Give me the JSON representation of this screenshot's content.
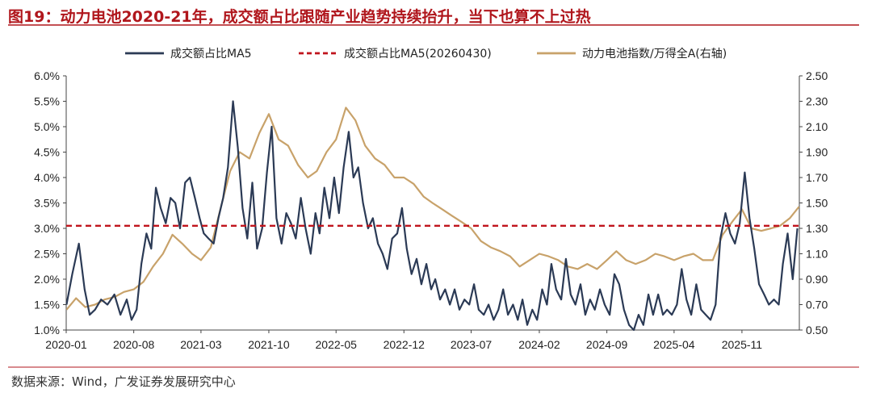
{
  "figure": {
    "title": "图19：动力电池2020-21年，成交额占比跟随产业趋势持续抬升，当下也算不上过热",
    "source": "数据来源：Wind，广发证券发展研究中心"
  },
  "colors": {
    "accent_red": "#b0161c",
    "series_dark": "#2b3a55",
    "series_gold": "#c8a26a",
    "ref_line": "#c0141c"
  },
  "chart_data": {
    "type": "line",
    "x_range": [
      "2020-01",
      "2026-05"
    ],
    "x_ticks": [
      "2020-01",
      "2020-08",
      "2021-03",
      "2021-10",
      "2022-05",
      "2022-12",
      "2023-07",
      "2024-02",
      "2024-09",
      "2025-04",
      "2025-11"
    ],
    "y_left": {
      "ticks": [
        "1.0%",
        "1.5%",
        "2.0%",
        "2.5%",
        "3.0%",
        "3.5%",
        "4.0%",
        "4.5%",
        "5.0%",
        "5.5%",
        "6.0%"
      ],
      "range": [
        1.0,
        6.0
      ],
      "unit": "%"
    },
    "y_right": {
      "ticks": [
        "0.50",
        "0.70",
        "0.90",
        "1.10",
        "1.30",
        "1.50",
        "1.70",
        "1.90",
        "2.10",
        "2.30",
        "2.50"
      ],
      "range": [
        0.5,
        2.5
      ]
    },
    "grid": false,
    "legend_position": "top",
    "series": [
      {
        "name": "成交额占比MA5",
        "axis": "left",
        "style": "solid",
        "color": "#2b3a55",
        "points": [
          [
            "2020-01-02",
            1.5
          ],
          [
            "2020-01-20",
            2.1
          ],
          [
            "2020-02-10",
            2.7
          ],
          [
            "2020-02-28",
            1.8
          ],
          [
            "2020-03-15",
            1.3
          ],
          [
            "2020-04-01",
            1.4
          ],
          [
            "2020-04-20",
            1.6
          ],
          [
            "2020-05-10",
            1.5
          ],
          [
            "2020-06-01",
            1.7
          ],
          [
            "2020-06-20",
            1.3
          ],
          [
            "2020-07-10",
            1.6
          ],
          [
            "2020-07-25",
            1.2
          ],
          [
            "2020-08-10",
            1.4
          ],
          [
            "2020-08-25",
            2.3
          ],
          [
            "2020-09-10",
            2.9
          ],
          [
            "2020-09-25",
            2.6
          ],
          [
            "2020-10-10",
            3.8
          ],
          [
            "2020-10-25",
            3.4
          ],
          [
            "2020-11-10",
            3.1
          ],
          [
            "2020-11-25",
            3.6
          ],
          [
            "2020-12-10",
            3.5
          ],
          [
            "2020-12-25",
            3.0
          ],
          [
            "2021-01-10",
            3.9
          ],
          [
            "2021-01-25",
            4.0
          ],
          [
            "2021-02-10",
            3.6
          ],
          [
            "2021-02-25",
            3.2
          ],
          [
            "2021-03-10",
            2.9
          ],
          [
            "2021-03-25",
            2.8
          ],
          [
            "2021-04-10",
            2.7
          ],
          [
            "2021-04-25",
            3.2
          ],
          [
            "2021-05-10",
            3.6
          ],
          [
            "2021-05-25",
            4.2
          ],
          [
            "2021-06-10",
            5.5
          ],
          [
            "2021-06-25",
            4.6
          ],
          [
            "2021-07-10",
            3.4
          ],
          [
            "2021-07-25",
            2.8
          ],
          [
            "2021-08-10",
            3.9
          ],
          [
            "2021-08-25",
            2.6
          ],
          [
            "2021-09-10",
            3.0
          ],
          [
            "2021-09-25",
            4.1
          ],
          [
            "2021-10-10",
            5.0
          ],
          [
            "2021-10-25",
            3.2
          ],
          [
            "2021-11-10",
            2.7
          ],
          [
            "2021-11-25",
            3.3
          ],
          [
            "2021-12-10",
            3.1
          ],
          [
            "2021-12-25",
            2.8
          ],
          [
            "2022-01-10",
            3.6
          ],
          [
            "2022-01-25",
            3.0
          ],
          [
            "2022-02-10",
            2.5
          ],
          [
            "2022-02-25",
            3.3
          ],
          [
            "2022-03-10",
            2.9
          ],
          [
            "2022-03-25",
            3.8
          ],
          [
            "2022-04-10",
            3.2
          ],
          [
            "2022-04-25",
            4.0
          ],
          [
            "2022-05-10",
            3.3
          ],
          [
            "2022-05-25",
            4.2
          ],
          [
            "2022-06-10",
            4.9
          ],
          [
            "2022-06-25",
            4.0
          ],
          [
            "2022-07-10",
            4.2
          ],
          [
            "2022-07-25",
            3.5
          ],
          [
            "2022-08-10",
            3.0
          ],
          [
            "2022-08-25",
            3.2
          ],
          [
            "2022-09-10",
            2.7
          ],
          [
            "2022-09-25",
            2.5
          ],
          [
            "2022-10-10",
            2.2
          ],
          [
            "2022-10-25",
            2.8
          ],
          [
            "2022-11-10",
            2.9
          ],
          [
            "2022-11-25",
            3.4
          ],
          [
            "2022-12-10",
            2.6
          ],
          [
            "2022-12-25",
            2.1
          ],
          [
            "2023-01-10",
            2.4
          ],
          [
            "2023-01-25",
            1.9
          ],
          [
            "2023-02-10",
            2.3
          ],
          [
            "2023-02-25",
            1.8
          ],
          [
            "2023-03-10",
            2.0
          ],
          [
            "2023-03-25",
            1.6
          ],
          [
            "2023-04-10",
            1.8
          ],
          [
            "2023-04-25",
            1.5
          ],
          [
            "2023-05-10",
            1.8
          ],
          [
            "2023-05-25",
            1.4
          ],
          [
            "2023-06-10",
            1.6
          ],
          [
            "2023-06-25",
            1.5
          ],
          [
            "2023-07-10",
            1.9
          ],
          [
            "2023-07-25",
            1.4
          ],
          [
            "2023-08-10",
            1.3
          ],
          [
            "2023-08-25",
            1.5
          ],
          [
            "2023-09-10",
            1.2
          ],
          [
            "2023-09-25",
            1.4
          ],
          [
            "2023-10-10",
            1.8
          ],
          [
            "2023-10-25",
            1.3
          ],
          [
            "2023-11-10",
            1.5
          ],
          [
            "2023-11-25",
            1.2
          ],
          [
            "2023-12-10",
            1.6
          ],
          [
            "2023-12-25",
            1.1
          ],
          [
            "2024-01-10",
            1.4
          ],
          [
            "2024-01-25",
            1.2
          ],
          [
            "2024-02-10",
            1.8
          ],
          [
            "2024-02-25",
            1.5
          ],
          [
            "2024-03-10",
            2.3
          ],
          [
            "2024-03-25",
            1.8
          ],
          [
            "2024-04-10",
            1.6
          ],
          [
            "2024-04-25",
            2.4
          ],
          [
            "2024-05-10",
            1.7
          ],
          [
            "2024-05-25",
            1.5
          ],
          [
            "2024-06-10",
            1.9
          ],
          [
            "2024-06-25",
            1.3
          ],
          [
            "2024-07-10",
            1.6
          ],
          [
            "2024-07-25",
            1.4
          ],
          [
            "2024-08-10",
            1.8
          ],
          [
            "2024-08-25",
            1.5
          ],
          [
            "2024-09-10",
            1.3
          ],
          [
            "2024-09-25",
            2.1
          ],
          [
            "2024-10-10",
            1.9
          ],
          [
            "2024-10-25",
            1.4
          ],
          [
            "2024-11-10",
            1.1
          ],
          [
            "2024-11-25",
            1.0
          ],
          [
            "2024-12-10",
            1.3
          ],
          [
            "2024-12-25",
            1.1
          ],
          [
            "2025-01-10",
            1.7
          ],
          [
            "2025-01-25",
            1.3
          ],
          [
            "2025-02-10",
            1.7
          ],
          [
            "2025-02-25",
            1.3
          ],
          [
            "2025-03-10",
            1.4
          ],
          [
            "2025-03-25",
            1.3
          ],
          [
            "2025-04-10",
            1.5
          ],
          [
            "2025-04-25",
            2.2
          ],
          [
            "2025-05-10",
            1.6
          ],
          [
            "2025-05-25",
            1.3
          ],
          [
            "2025-06-10",
            1.9
          ],
          [
            "2025-06-25",
            1.4
          ],
          [
            "2025-07-10",
            1.3
          ],
          [
            "2025-07-25",
            1.2
          ],
          [
            "2025-08-10",
            1.5
          ],
          [
            "2025-08-25",
            2.8
          ],
          [
            "2025-09-10",
            3.3
          ],
          [
            "2025-09-25",
            2.9
          ],
          [
            "2025-10-10",
            2.7
          ],
          [
            "2025-10-25",
            3.1
          ],
          [
            "2025-11-10",
            4.1
          ],
          [
            "2025-11-25",
            3.2
          ],
          [
            "2025-12-10",
            2.6
          ],
          [
            "2025-12-25",
            1.9
          ],
          [
            "2026-01-10",
            1.7
          ],
          [
            "2026-01-25",
            1.5
          ],
          [
            "2026-02-10",
            1.6
          ],
          [
            "2026-02-25",
            1.5
          ],
          [
            "2026-03-10",
            2.3
          ],
          [
            "2026-03-25",
            2.9
          ],
          [
            "2026-04-10",
            2.0
          ],
          [
            "2026-04-25",
            3.0
          ]
        ]
      },
      {
        "name": "成交额占比MA5(20260430)",
        "axis": "left",
        "style": "dashed",
        "color": "#c0141c",
        "value": 3.05
      },
      {
        "name": "动力电池指数/万得全A(右轴)",
        "axis": "right",
        "style": "solid",
        "color": "#c8a26a",
        "points": [
          [
            "2020-01-02",
            0.66
          ],
          [
            "2020-02-01",
            0.75
          ],
          [
            "2020-03-01",
            0.68
          ],
          [
            "2020-04-01",
            0.7
          ],
          [
            "2020-05-01",
            0.74
          ],
          [
            "2020-06-01",
            0.76
          ],
          [
            "2020-07-01",
            0.8
          ],
          [
            "2020-08-01",
            0.82
          ],
          [
            "2020-09-01",
            0.88
          ],
          [
            "2020-10-01",
            1.0
          ],
          [
            "2020-11-01",
            1.1
          ],
          [
            "2020-12-01",
            1.25
          ],
          [
            "2021-01-01",
            1.18
          ],
          [
            "2021-02-01",
            1.1
          ],
          [
            "2021-03-01",
            1.05
          ],
          [
            "2021-04-01",
            1.15
          ],
          [
            "2021-05-01",
            1.45
          ],
          [
            "2021-06-01",
            1.75
          ],
          [
            "2021-07-01",
            1.9
          ],
          [
            "2021-08-01",
            1.85
          ],
          [
            "2021-09-01",
            2.05
          ],
          [
            "2021-10-01",
            2.2
          ],
          [
            "2021-11-01",
            2.0
          ],
          [
            "2021-12-01",
            1.95
          ],
          [
            "2022-01-01",
            1.8
          ],
          [
            "2022-02-01",
            1.7
          ],
          [
            "2022-03-01",
            1.75
          ],
          [
            "2022-04-01",
            1.9
          ],
          [
            "2022-05-01",
            2.0
          ],
          [
            "2022-06-01",
            2.25
          ],
          [
            "2022-07-01",
            2.15
          ],
          [
            "2022-08-01",
            1.95
          ],
          [
            "2022-09-01",
            1.85
          ],
          [
            "2022-10-01",
            1.8
          ],
          [
            "2022-11-01",
            1.7
          ],
          [
            "2022-12-01",
            1.7
          ],
          [
            "2023-01-01",
            1.65
          ],
          [
            "2023-02-01",
            1.55
          ],
          [
            "2023-03-01",
            1.5
          ],
          [
            "2023-04-01",
            1.45
          ],
          [
            "2023-05-01",
            1.4
          ],
          [
            "2023-06-01",
            1.35
          ],
          [
            "2023-07-01",
            1.3
          ],
          [
            "2023-08-01",
            1.2
          ],
          [
            "2023-09-01",
            1.15
          ],
          [
            "2023-10-01",
            1.12
          ],
          [
            "2023-11-01",
            1.08
          ],
          [
            "2023-12-01",
            1.0
          ],
          [
            "2024-01-01",
            1.05
          ],
          [
            "2024-02-01",
            1.1
          ],
          [
            "2024-03-01",
            1.08
          ],
          [
            "2024-04-01",
            1.05
          ],
          [
            "2024-05-01",
            1.0
          ],
          [
            "2024-06-01",
            0.98
          ],
          [
            "2024-07-01",
            1.02
          ],
          [
            "2024-08-01",
            0.98
          ],
          [
            "2024-09-01",
            1.05
          ],
          [
            "2024-10-01",
            1.12
          ],
          [
            "2024-11-01",
            1.05
          ],
          [
            "2024-12-01",
            1.02
          ],
          [
            "2025-01-01",
            1.05
          ],
          [
            "2025-02-01",
            1.1
          ],
          [
            "2025-03-01",
            1.08
          ],
          [
            "2025-04-01",
            1.05
          ],
          [
            "2025-05-01",
            1.08
          ],
          [
            "2025-06-01",
            1.1
          ],
          [
            "2025-07-01",
            1.05
          ],
          [
            "2025-08-01",
            1.05
          ],
          [
            "2025-09-01",
            1.25
          ],
          [
            "2025-10-01",
            1.35
          ],
          [
            "2025-11-01",
            1.45
          ],
          [
            "2025-12-01",
            1.3
          ],
          [
            "2026-01-01",
            1.28
          ],
          [
            "2026-02-01",
            1.3
          ],
          [
            "2026-03-01",
            1.32
          ],
          [
            "2026-04-01",
            1.38
          ],
          [
            "2026-04-30",
            1.47
          ]
        ]
      }
    ]
  }
}
